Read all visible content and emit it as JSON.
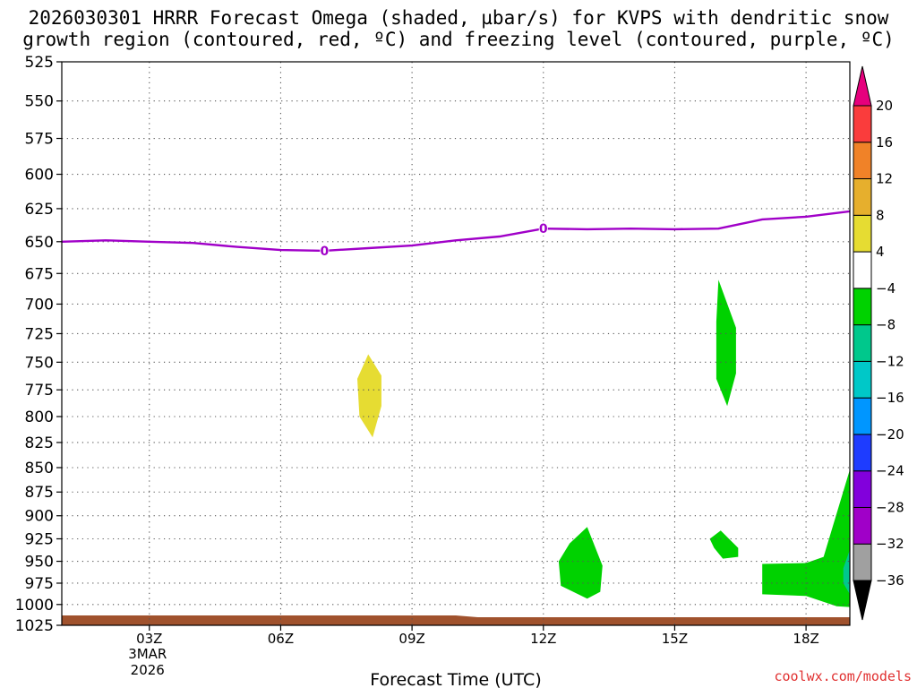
{
  "title_line1": "2026030301 HRRR Forecast Omega (shaded, µbar/s) for KVPS with dendritic snow",
  "title_line2": "growth region (contoured, red, ºC) and freezing level (contoured, purple, ºC)",
  "credit": "coolwx.com/models",
  "chart_data": {
    "type": "contour",
    "title": "2026030301 HRRR Forecast Omega (shaded, µbar/s) for KVPS with dendritic snow growth region (contoured, red, ºC) and freezing level (contoured, purple, ºC)",
    "xlabel": "Forecast Time (UTC)",
    "ylabel": "",
    "x_unit": "forecast hour from 2026-03-03 00Z",
    "xlim": [
      1,
      19
    ],
    "ylim": [
      1025,
      525
    ],
    "y_scale": "log-pressure",
    "y_ticks": [
      525,
      550,
      575,
      600,
      625,
      650,
      675,
      700,
      725,
      750,
      775,
      800,
      825,
      850,
      875,
      900,
      925,
      950,
      975,
      1000,
      1025
    ],
    "x_ticks": [
      {
        "x": 3,
        "label": "03Z",
        "sub1": "3MAR",
        "sub2": "2026"
      },
      {
        "x": 6,
        "label": "06Z"
      },
      {
        "x": 9,
        "label": "09Z"
      },
      {
        "x": 12,
        "label": "12Z"
      },
      {
        "x": 15,
        "label": "15Z"
      },
      {
        "x": 18,
        "label": "18Z"
      }
    ],
    "grid": true,
    "freezing_level": {
      "label": "0",
      "color": "#a000c8",
      "points": [
        [
          1,
          650
        ],
        [
          2,
          649
        ],
        [
          3,
          650
        ],
        [
          4,
          651
        ],
        [
          5,
          654
        ],
        [
          6,
          656.5
        ],
        [
          7,
          657
        ],
        [
          8,
          655
        ],
        [
          9,
          653
        ],
        [
          10,
          649
        ],
        [
          11,
          646
        ],
        [
          12,
          640
        ],
        [
          13,
          640.5
        ],
        [
          14,
          640
        ],
        [
          15,
          640.5
        ],
        [
          16,
          640
        ],
        [
          17,
          633
        ],
        [
          18,
          631
        ],
        [
          19,
          627
        ]
      ]
    },
    "omega_regions": [
      {
        "value_range": [
          4,
          8
        ],
        "color": "#e6dc32",
        "points": [
          [
            8,
            743
          ],
          [
            8.3,
            762
          ],
          [
            8.3,
            790
          ],
          [
            8.1,
            820
          ],
          [
            7.8,
            800
          ],
          [
            7.75,
            765
          ]
        ]
      },
      {
        "value_range": [
          -8,
          -4
        ],
        "color": "#00d200",
        "points": [
          [
            16,
            680
          ],
          [
            16.4,
            720
          ],
          [
            16.4,
            760
          ],
          [
            16.2,
            790
          ],
          [
            15.95,
            765
          ],
          [
            15.95,
            715
          ]
        ]
      },
      {
        "value_range": [
          -8,
          -4
        ],
        "color": "#00d200",
        "points": [
          [
            13,
            912
          ],
          [
            13.35,
            955
          ],
          [
            13.3,
            985
          ],
          [
            13.0,
            993
          ],
          [
            12.4,
            978
          ],
          [
            12.35,
            950
          ],
          [
            12.6,
            930
          ]
        ]
      },
      {
        "value_range": [
          -8,
          -4
        ],
        "color": "#00d200",
        "points": [
          [
            15.8,
            925
          ],
          [
            16.05,
            916
          ],
          [
            16.45,
            935
          ],
          [
            16.45,
            945
          ],
          [
            16.1,
            947
          ],
          [
            15.9,
            935
          ]
        ]
      },
      {
        "value_range": [
          -8,
          -4
        ],
        "color": "#00d200",
        "points": [
          [
            17,
            953
          ],
          [
            18,
            952
          ],
          [
            18.4,
            945
          ],
          [
            19,
            852
          ],
          [
            19,
            1003
          ],
          [
            18.7,
            1002
          ],
          [
            18,
            990
          ],
          [
            17,
            988
          ]
        ]
      },
      {
        "value_range": [
          -12,
          -8
        ],
        "color": "#00c88c",
        "points": [
          [
            19,
            937
          ],
          [
            18.85,
            958
          ],
          [
            18.85,
            975
          ],
          [
            19,
            988
          ]
        ]
      }
    ],
    "terrain_color": "#a0522d",
    "colorbar": {
      "levels": [
        -36,
        -32,
        -28,
        -24,
        -20,
        -16,
        -12,
        -8,
        -4,
        4,
        8,
        12,
        16,
        20
      ],
      "colors": [
        "#000000",
        "#a0a0a0",
        "#a000c8",
        "#8200dc",
        "#1e3cff",
        "#0096ff",
        "#00c8c8",
        "#00c88c",
        "#00d200",
        "#ffffff",
        "#e6dc32",
        "#e6af2d",
        "#f08228",
        "#fa3c3c",
        "#e6007d"
      ]
    }
  }
}
